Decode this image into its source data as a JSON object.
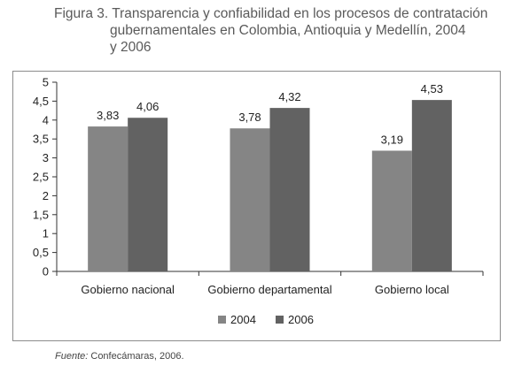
{
  "title": {
    "line1": "Figura 3. Transparencia y confiabilidad en los procesos de contratación",
    "line2": "gubernamentales en Colombia, Antioquia y Medellín, 2004",
    "line3": "y 2006"
  },
  "source": {
    "label": "Fuente:",
    "text": "Confecámaras, 2006."
  },
  "colors": {
    "series_2004": "#858585",
    "series_2006": "#626262",
    "axis": "#333333",
    "frame": "#8c8c8c"
  },
  "chart_data": {
    "type": "bar",
    "categories": [
      "Gobierno nacional",
      "Gobierno departamental",
      "Gobierno local"
    ],
    "series": [
      {
        "name": "2004",
        "values": [
          3.83,
          3.78,
          3.19
        ],
        "labels": [
          "3,83",
          "3,78",
          "3,19"
        ]
      },
      {
        "name": "2006",
        "values": [
          4.06,
          4.32,
          4.53
        ],
        "labels": [
          "4,06",
          "4,32",
          "4,53"
        ]
      }
    ],
    "ylim": [
      0,
      5
    ],
    "yticks": [
      0,
      0.5,
      1,
      1.5,
      2,
      2.5,
      3,
      3.5,
      4,
      4.5,
      5
    ],
    "ytick_labels": [
      "0",
      "0,5",
      "1",
      "1,5",
      "2",
      "2,5",
      "3",
      "3,5",
      "4",
      "4,5",
      "5"
    ],
    "xlabel": "",
    "ylabel": "",
    "grid": false,
    "legend": "bottom"
  }
}
